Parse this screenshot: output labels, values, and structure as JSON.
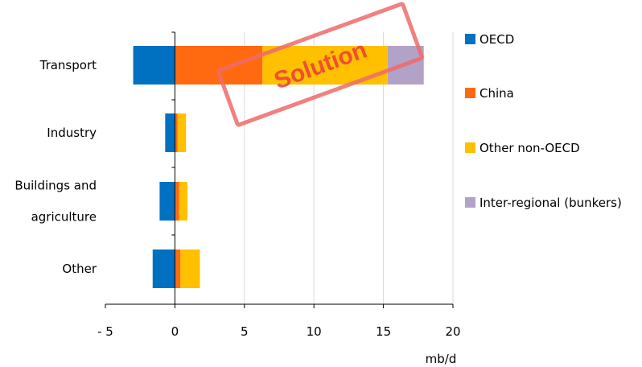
{
  "chart_data": {
    "type": "bar",
    "orientation": "horizontal",
    "stacked": true,
    "categories": [
      "Transport",
      "Industry",
      "Buildings and agriculture",
      "Other"
    ],
    "category_lines": [
      [
        "Transport"
      ],
      [
        "Industry"
      ],
      [
        "Buildings and",
        "agriculture"
      ],
      [
        "Other"
      ]
    ],
    "series": [
      {
        "name": "OECD",
        "color": "#0070c0",
        "values": [
          -3.0,
          -0.7,
          -1.1,
          -1.6
        ]
      },
      {
        "name": "China",
        "color": "#ff6a10",
        "values": [
          6.3,
          0.2,
          0.3,
          0.4
        ]
      },
      {
        "name": "Other non-OECD",
        "color": "#ffc000",
        "values": [
          9.0,
          0.6,
          0.6,
          1.4
        ]
      },
      {
        "name": "Inter-regional (bunkers)",
        "color": "#b3a2c7",
        "values": [
          2.6,
          0.0,
          0.0,
          0.0
        ]
      }
    ],
    "xlim": [
      -5,
      20
    ],
    "xticks": [
      -5,
      0,
      5,
      10,
      15,
      20
    ],
    "xtick_labels": [
      "- 5",
      "0",
      "5",
      "10",
      "15",
      "20"
    ],
    "xlabel": "mb/d",
    "ylabel": "",
    "title": "",
    "grid": "vertical",
    "legend_position": "right"
  },
  "stamp": {
    "text": "Solution",
    "color": "#ee3b3b"
  }
}
